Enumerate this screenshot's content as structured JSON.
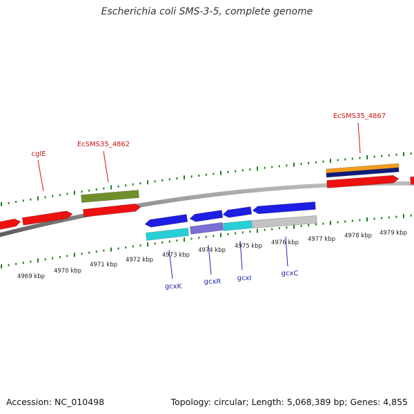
{
  "title": "Escherichia coli SMS-3-5, complete genome",
  "accession_text": "Accession: NC_010498",
  "summary_text": "Topology: circular; Length: 5,068,389 bp; Genes: 4,855",
  "colors": {
    "backbone": "#8a8a8a",
    "tick": "#1f7a1f",
    "gene_red": "#ee1111",
    "gene_olive": "#6f8f2c",
    "gene_blue": "#1d1de3",
    "gene_cyan": "#27cfd6",
    "gene_violet": "#7a6fd6",
    "gene_gray": "#c4c4c4",
    "gene_orange": "#f39c1c",
    "gene_navy": "#0f1c7c",
    "label_red": "#cc1111",
    "label_blue": "#2222aa"
  },
  "scale_labels": [
    "4969 kbp",
    "4970 kbp",
    "4971 kbp",
    "4972 kbp",
    "4973 kbp",
    "4974 kbp",
    "4975 kbp",
    "4976 kbp",
    "4977 kbp",
    "4978 kbp",
    "4979 kbp"
  ],
  "gene_labels": [
    {
      "name": "cglE",
      "color": "label_red"
    },
    {
      "name": "EcSMS35_4862",
      "color": "label_red"
    },
    {
      "name": "EcSMS35_4867",
      "color": "label_red"
    },
    {
      "name": "gcxK",
      "color": "label_blue"
    },
    {
      "name": "gcxR",
      "color": "label_blue"
    },
    {
      "name": "gcxI",
      "color": "label_blue"
    },
    {
      "name": "gcxC",
      "color": "label_blue"
    }
  ]
}
